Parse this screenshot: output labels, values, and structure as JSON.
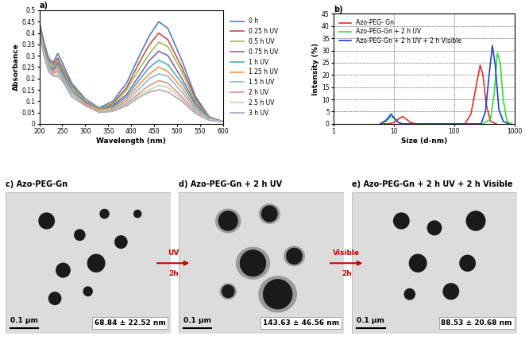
{
  "chart_data": [
    {
      "type": "line",
      "title": "a)",
      "x_label": "Wavelength (nm)",
      "y_label": "Absorbance",
      "x": [
        200,
        210,
        220,
        230,
        240,
        250,
        270,
        300,
        330,
        360,
        390,
        420,
        440,
        460,
        480,
        510,
        540,
        570,
        600
      ],
      "xlim": [
        200,
        600
      ],
      "xticks": [
        200,
        250,
        300,
        350,
        400,
        450,
        500,
        550,
        600
      ],
      "ylim": [
        0,
        0.5
      ],
      "yticks": [
        0,
        0.05,
        0.1,
        0.15,
        0.2,
        0.25,
        0.3,
        0.35,
        0.4,
        0.45,
        0.5
      ],
      "legend": "right",
      "grid": false,
      "series": [
        {
          "name": "0 h",
          "color": "#4f81bd",
          "values": [
            0.45,
            0.36,
            0.29,
            0.27,
            0.31,
            0.27,
            0.18,
            0.11,
            0.07,
            0.1,
            0.18,
            0.31,
            0.39,
            0.45,
            0.42,
            0.28,
            0.12,
            0.03,
            0.01
          ]
        },
        {
          "name": "0.25 h UV",
          "color": "#c0504d",
          "values": [
            0.44,
            0.35,
            0.28,
            0.26,
            0.29,
            0.25,
            0.17,
            0.1,
            0.065,
            0.09,
            0.16,
            0.28,
            0.35,
            0.4,
            0.37,
            0.25,
            0.11,
            0.03,
            0.01
          ]
        },
        {
          "name": "0.5 h UV",
          "color": "#9bbb59",
          "values": [
            0.43,
            0.34,
            0.27,
            0.25,
            0.28,
            0.24,
            0.16,
            0.1,
            0.065,
            0.085,
            0.15,
            0.25,
            0.31,
            0.36,
            0.34,
            0.23,
            0.1,
            0.03,
            0.01
          ]
        },
        {
          "name": "0.75 h UV",
          "color": "#8064a2",
          "values": [
            0.42,
            0.33,
            0.26,
            0.24,
            0.27,
            0.23,
            0.15,
            0.095,
            0.06,
            0.08,
            0.13,
            0.22,
            0.28,
            0.32,
            0.3,
            0.2,
            0.09,
            0.025,
            0.01
          ]
        },
        {
          "name": "1 h UV",
          "color": "#4bacc6",
          "values": [
            0.42,
            0.33,
            0.26,
            0.23,
            0.26,
            0.22,
            0.15,
            0.09,
            0.06,
            0.075,
            0.12,
            0.2,
            0.25,
            0.28,
            0.26,
            0.18,
            0.08,
            0.025,
            0.01
          ]
        },
        {
          "name": "1.25 h UV",
          "color": "#f79646",
          "values": [
            0.41,
            0.32,
            0.25,
            0.23,
            0.25,
            0.21,
            0.14,
            0.09,
            0.06,
            0.07,
            0.11,
            0.18,
            0.22,
            0.25,
            0.23,
            0.16,
            0.07,
            0.02,
            0.01
          ]
        },
        {
          "name": "1.5 h UV",
          "color": "#95b3d7",
          "values": [
            0.41,
            0.32,
            0.25,
            0.22,
            0.24,
            0.21,
            0.14,
            0.085,
            0.055,
            0.065,
            0.1,
            0.16,
            0.2,
            0.22,
            0.21,
            0.14,
            0.065,
            0.02,
            0.01
          ]
        },
        {
          "name": "2 h UV",
          "color": "#d99694",
          "values": [
            0.4,
            0.31,
            0.24,
            0.22,
            0.23,
            0.2,
            0.13,
            0.085,
            0.055,
            0.06,
            0.09,
            0.14,
            0.17,
            0.19,
            0.18,
            0.12,
            0.055,
            0.02,
            0.01
          ]
        },
        {
          "name": "2.5 h UV",
          "color": "#c3d69b",
          "values": [
            0.4,
            0.31,
            0.24,
            0.21,
            0.22,
            0.19,
            0.13,
            0.08,
            0.055,
            0.06,
            0.085,
            0.13,
            0.15,
            0.17,
            0.16,
            0.11,
            0.05,
            0.02,
            0.01
          ]
        },
        {
          "name": "3 h UV",
          "color": "#b2a1c7",
          "values": [
            0.4,
            0.3,
            0.23,
            0.21,
            0.21,
            0.19,
            0.12,
            0.08,
            0.05,
            0.055,
            0.08,
            0.12,
            0.14,
            0.15,
            0.14,
            0.1,
            0.045,
            0.015,
            0.01
          ]
        }
      ]
    },
    {
      "type": "line",
      "title": "b)",
      "x_label": "Size (d-nm)",
      "y_label": "Intensity (%)",
      "log": "x",
      "xlim": [
        1,
        1000
      ],
      "xticks": [
        1,
        10,
        100,
        1000
      ],
      "ylim": [
        0,
        45
      ],
      "yticks": [
        0,
        5,
        10,
        15,
        20,
        25,
        30,
        35,
        40,
        45
      ],
      "grid": true,
      "legend": "upper left",
      "series": [
        {
          "name": "Azo-PEG- Gn",
          "color": "#e03030",
          "x": [
            6,
            8,
            10,
            12,
            14,
            16,
            19,
            24,
            150,
            190,
            230,
            270,
            300,
            340,
            400,
            500
          ],
          "values": [
            0,
            0,
            0.5,
            2,
            3,
            2,
            0.5,
            0,
            0,
            4,
            15,
            24,
            20,
            8,
            1,
            0
          ]
        },
        {
          "name": "Azo-PEG-Gn + 2 h UV",
          "color": "#33dd33",
          "x": [
            6,
            7.5,
            9,
            10.5,
            12,
            14,
            200,
            300,
            400,
            460,
            520,
            580,
            650,
            750,
            900
          ],
          "values": [
            0,
            1,
            3,
            2,
            0.5,
            0,
            0,
            0,
            2,
            12,
            29,
            25,
            10,
            1,
            0
          ]
        },
        {
          "name": "Azo-PEG-Gn + 2 h UV + 2 h Visible",
          "color": "#2040d0",
          "x": [
            6,
            7.5,
            9,
            10.5,
            12,
            14,
            200,
            280,
            330,
            380,
            430,
            480,
            550,
            650,
            800
          ],
          "values": [
            0,
            1.5,
            4,
            2,
            0.5,
            0,
            0,
            0,
            5,
            20,
            32,
            24,
            6,
            1,
            0
          ]
        }
      ]
    }
  ],
  "images": [
    {
      "title": "c) Azo-PEG-Gn",
      "scale_bar": "0.1 µm",
      "size": "68.84 ± 22.52 nm"
    },
    {
      "title": "d) Azo-PEG-Gn + 2 h UV",
      "scale_bar": "0.1 µm",
      "size": "143.63 ± 46.56 nm"
    },
    {
      "title": "e) Azo-PEG-Gn + 2 h UV + 2 h Visible",
      "scale_bar": "0.1 µm",
      "size": "88.53 ± 20.68 nm"
    }
  ],
  "arrows": [
    {
      "label": "UV",
      "time": "2h"
    },
    {
      "label": "Visible",
      "time": "2h"
    }
  ]
}
